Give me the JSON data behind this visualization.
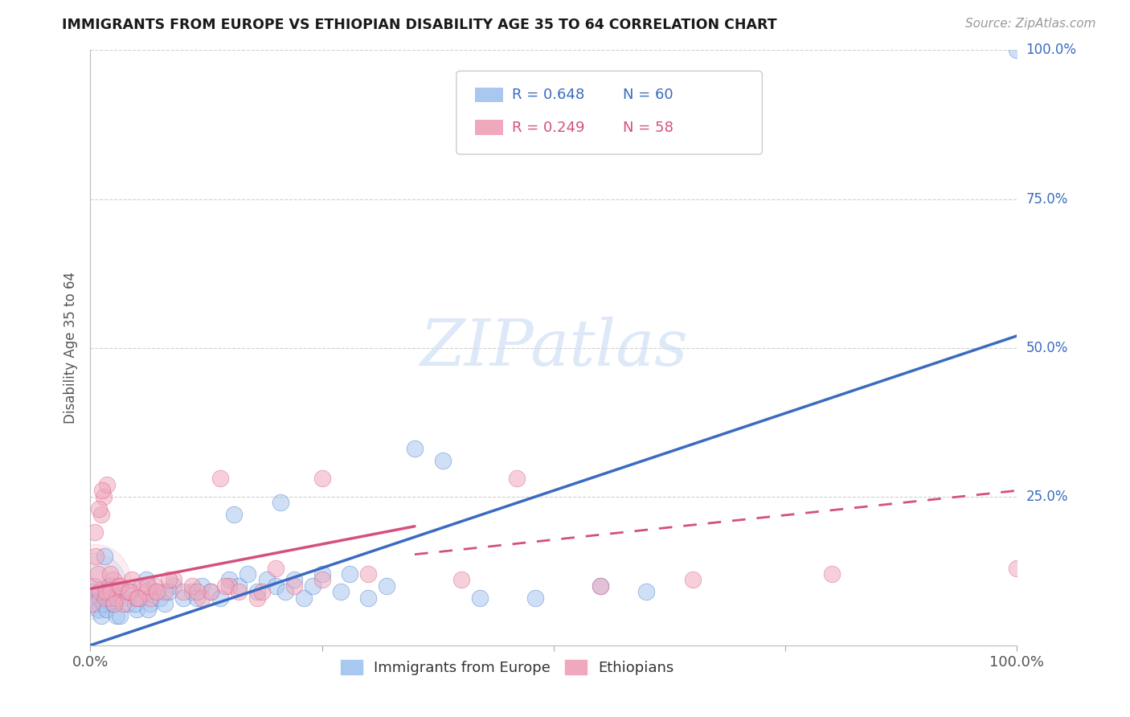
{
  "title": "IMMIGRANTS FROM EUROPE VS ETHIOPIAN DISABILITY AGE 35 TO 64 CORRELATION CHART",
  "source": "Source: ZipAtlas.com",
  "ylabel": "Disability Age 35 to 64",
  "legend_blue_label": "Immigrants from Europe",
  "legend_pink_label": "Ethiopians",
  "r_blue": 0.648,
  "n_blue": 60,
  "r_pink": 0.249,
  "n_pink": 58,
  "blue_color": "#a8c8f0",
  "blue_line_color": "#3a6bbf",
  "pink_color": "#f0a8bc",
  "pink_line_color": "#d45080",
  "background_color": "#ffffff",
  "blue_scatter_x": [
    0.4,
    0.6,
    0.8,
    1.0,
    1.2,
    1.4,
    1.6,
    1.8,
    2.0,
    2.2,
    2.5,
    2.8,
    3.0,
    3.5,
    4.0,
    4.5,
    5.0,
    5.5,
    6.0,
    6.5,
    7.0,
    7.5,
    8.0,
    9.0,
    10.0,
    11.0,
    12.0,
    13.0,
    14.0,
    15.0,
    16.0,
    17.0,
    18.0,
    19.0,
    20.0,
    21.0,
    22.0,
    23.0,
    24.0,
    25.0,
    27.0,
    28.0,
    30.0,
    32.0,
    35.0,
    38.0,
    42.0,
    48.0,
    55.0,
    100.0,
    1.5,
    2.3,
    3.2,
    4.8,
    6.2,
    8.5,
    11.5,
    15.5,
    20.5,
    60.0
  ],
  "blue_scatter_y": [
    9,
    7,
    6,
    8,
    5,
    7,
    9,
    6,
    8,
    10,
    7,
    5,
    9,
    8,
    7,
    9,
    6,
    8,
    11,
    7,
    9,
    8,
    7,
    10,
    8,
    9,
    10,
    9,
    8,
    11,
    10,
    12,
    9,
    11,
    10,
    9,
    11,
    8,
    10,
    12,
    9,
    12,
    8,
    10,
    33,
    31,
    8,
    8,
    10,
    100,
    15,
    8,
    5,
    7,
    6,
    9,
    8,
    22,
    24,
    9
  ],
  "pink_scatter_x": [
    0.2,
    0.4,
    0.6,
    0.8,
    1.0,
    1.2,
    1.4,
    1.6,
    1.8,
    2.0,
    2.2,
    2.5,
    2.8,
    3.0,
    3.5,
    4.0,
    4.5,
    5.0,
    5.5,
    6.0,
    6.5,
    7.0,
    8.0,
    9.0,
    10.0,
    11.0,
    12.0,
    13.0,
    14.0,
    15.0,
    16.0,
    18.0,
    20.0,
    22.0,
    25.0,
    0.5,
    0.9,
    1.3,
    1.7,
    2.1,
    2.6,
    3.2,
    4.2,
    5.2,
    6.2,
    7.2,
    8.5,
    11.5,
    14.5,
    18.5,
    25.0,
    30.0,
    40.0,
    46.0,
    55.0,
    65.0,
    80.0,
    100.0
  ],
  "pink_scatter_y": [
    7,
    10,
    15,
    12,
    9,
    22,
    25,
    8,
    27,
    10,
    9,
    11,
    8,
    10,
    7,
    9,
    11,
    8,
    10,
    9,
    8,
    10,
    9,
    11,
    9,
    10,
    8,
    9,
    28,
    10,
    9,
    8,
    13,
    10,
    28,
    19,
    23,
    26,
    9,
    12,
    7,
    10,
    9,
    8,
    10,
    9,
    11,
    9,
    10,
    9,
    11,
    12,
    11,
    28,
    10,
    11,
    12,
    13
  ],
  "blue_line": [
    0,
    100,
    0,
    52
  ],
  "pink_line_solid": [
    0,
    35,
    9.5,
    20
  ],
  "pink_line_dash": [
    0,
    100,
    9.5,
    26
  ]
}
